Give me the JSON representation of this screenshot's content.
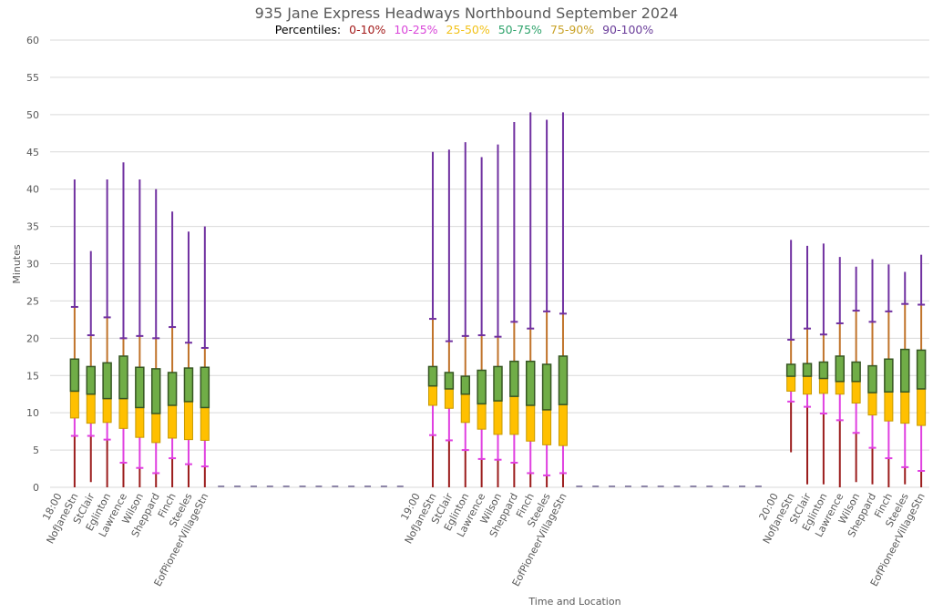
{
  "chart_data": {
    "type": "boxplot",
    "title": "935 Jane Express Headways Northbound September 2024",
    "legend_title": "Percentiles:",
    "legend": [
      {
        "label": "0-10%",
        "color": "#a31a1a"
      },
      {
        "label": "10-25%",
        "color": "#d946d9"
      },
      {
        "label": "25-50%",
        "color": "#f2c21a"
      },
      {
        "label": "50-75%",
        "color": "#2ea36b"
      },
      {
        "label": "75-90%",
        "color": "#c9a227"
      },
      {
        "label": "90-100%",
        "color": "#6a3d9a"
      }
    ],
    "segment_colors": {
      "p0_10": "#9b1c1c",
      "p10_25": "#e040e0",
      "p25_50": "#ffc000",
      "p25_50_border": "#c89a00",
      "p50_75": "#70ad47",
      "p50_75_border": "#375623",
      "p75_90": "#c0732a",
      "p90_100": "#7030a0",
      "zero_dash": "#8e86a8"
    },
    "xlabel": "Time and Location",
    "ylabel": "Minutes",
    "ylim": [
      0,
      60
    ],
    "yticks": [
      0,
      5,
      10,
      15,
      20,
      25,
      30,
      35,
      40,
      45,
      50,
      55,
      60
    ],
    "grid": true,
    "legend_position": "top-center",
    "gap_zero_slots": 12,
    "groups": [
      {
        "time": "18:00",
        "stations": [
          "NofJaneStn",
          "StClair",
          "Eglinton",
          "Lawrence",
          "Wilson",
          "Sheppard",
          "Finch",
          "Steeles",
          "EofPioneerVillageStn"
        ],
        "min": [
          0,
          0.7,
          0,
          0,
          0,
          0,
          0,
          0,
          0
        ],
        "p10": [
          6.9,
          6.9,
          6.4,
          3.3,
          2.6,
          1.9,
          3.9,
          3.1,
          2.8
        ],
        "p25": [
          9.3,
          8.6,
          8.7,
          7.9,
          6.7,
          6.0,
          6.6,
          6.4,
          6.3
        ],
        "median": [
          12.9,
          12.5,
          11.9,
          11.9,
          10.7,
          9.9,
          11.0,
          11.5,
          10.7
        ],
        "p75": [
          17.2,
          16.2,
          16.7,
          17.6,
          16.1,
          15.9,
          15.4,
          16.0,
          16.1
        ],
        "p90": [
          24.2,
          20.4,
          22.8,
          20.0,
          20.3,
          20.0,
          21.5,
          19.4,
          18.7
        ],
        "max": [
          41.3,
          31.7,
          41.3,
          43.6,
          41.3,
          40.0,
          37.0,
          34.3,
          35.0
        ]
      },
      {
        "time": "19:00",
        "stations": [
          "NofJaneStn",
          "StClair",
          "Eglinton",
          "Lawrence",
          "Wilson",
          "Sheppard",
          "Finch",
          "Steeles",
          "EofPioneerVillageStn"
        ],
        "min": [
          0,
          0,
          0,
          0,
          0,
          0,
          0,
          0,
          0
        ],
        "p10": [
          7.0,
          6.3,
          5.0,
          3.8,
          3.7,
          3.3,
          1.9,
          1.6,
          1.9
        ],
        "p25": [
          11.0,
          10.6,
          8.7,
          7.8,
          7.1,
          7.1,
          6.2,
          5.7,
          5.6
        ],
        "median": [
          13.6,
          13.2,
          12.5,
          11.2,
          11.6,
          12.2,
          11.0,
          10.4,
          11.1
        ],
        "p75": [
          16.2,
          15.4,
          14.9,
          15.7,
          16.2,
          16.9,
          16.9,
          16.5,
          17.6
        ],
        "p90": [
          22.6,
          19.6,
          20.3,
          20.4,
          20.2,
          22.2,
          21.3,
          23.6,
          23.3
        ],
        "max": [
          45.0,
          45.3,
          46.3,
          44.3,
          46.0,
          49.0,
          50.3,
          49.3,
          50.3
        ]
      },
      {
        "time": "20:00",
        "stations": [
          "NofJaneStn",
          "StClair",
          "Eglinton",
          "Lawrence",
          "Wilson",
          "Sheppard",
          "Finch",
          "Steeles",
          "EofPioneerVillageStn"
        ],
        "min": [
          4.7,
          0.4,
          0.4,
          0,
          0.7,
          0.4,
          0,
          0.4,
          0
        ],
        "p10": [
          11.5,
          10.8,
          9.9,
          9.0,
          7.3,
          5.3,
          3.9,
          2.7,
          2.2
        ],
        "p25": [
          12.9,
          12.5,
          12.6,
          12.5,
          11.3,
          9.7,
          8.9,
          8.6,
          8.3
        ],
        "median": [
          14.9,
          14.9,
          14.6,
          14.2,
          14.2,
          12.7,
          12.8,
          12.8,
          13.2
        ],
        "p75": [
          16.5,
          16.6,
          16.8,
          17.6,
          16.8,
          16.3,
          17.2,
          18.5,
          18.4
        ],
        "p90": [
          19.8,
          21.3,
          20.5,
          22.0,
          23.7,
          22.2,
          23.6,
          24.6,
          24.5
        ],
        "max": [
          33.2,
          32.4,
          32.7,
          30.9,
          29.6,
          30.6,
          29.9,
          28.9,
          31.2
        ]
      }
    ]
  }
}
